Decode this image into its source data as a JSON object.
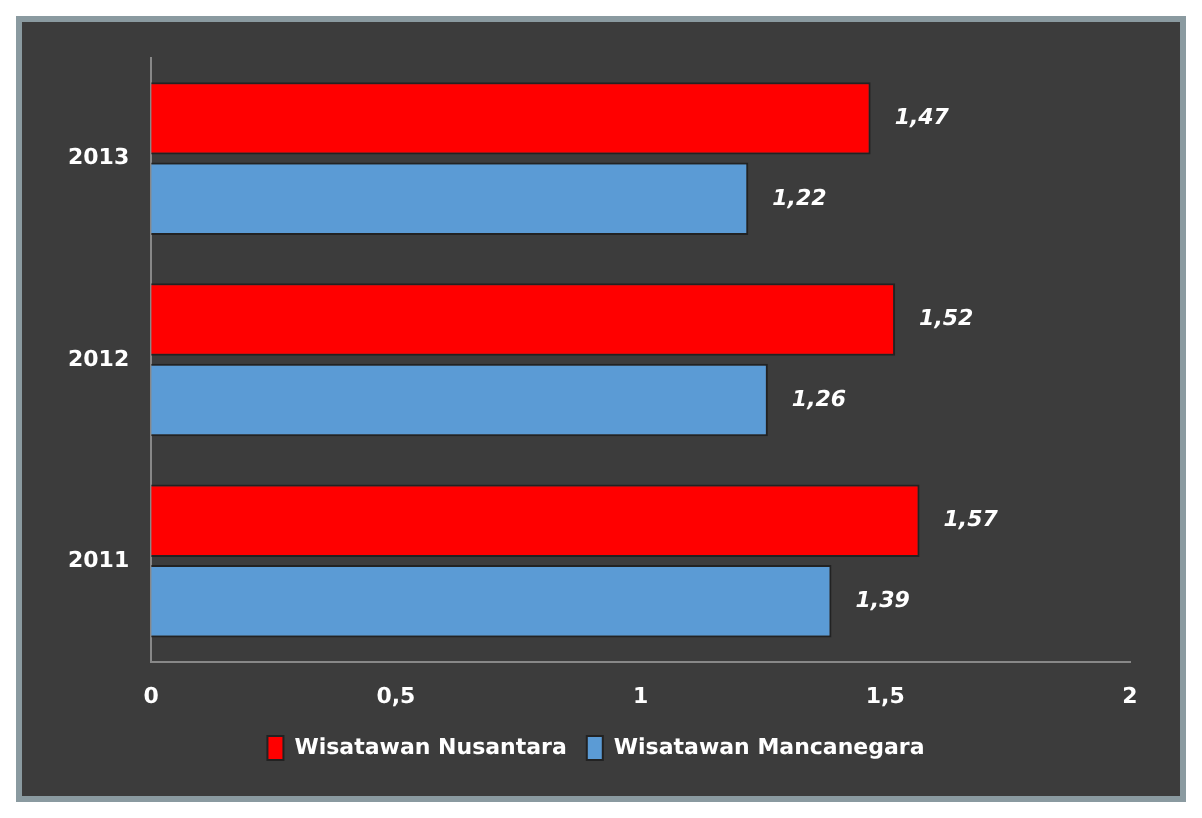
{
  "chart_data": {
    "type": "bar",
    "orientation": "horizontal",
    "categories": [
      "2013",
      "2012",
      "2011"
    ],
    "series": [
      {
        "name": "Wisatawan Nusantara",
        "color": "#ff0000",
        "values": [
          1.47,
          1.52,
          1.57
        ],
        "value_labels": [
          "1,47",
          "1,52",
          "1,57"
        ]
      },
      {
        "name": "Wisatawan Mancanegara",
        "color": "#5b9bd5",
        "values": [
          1.22,
          1.26,
          1.39
        ],
        "value_labels": [
          "1,22",
          "1,26",
          "1,39"
        ]
      }
    ],
    "xlim": [
      0,
      2
    ],
    "xticks": [
      0,
      {
        "value": 0.5,
        "label": "0,5"
      },
      1,
      {
        "value": 1.5,
        "label": "1,5"
      },
      2
    ],
    "grid": false,
    "legend": "bottom"
  }
}
